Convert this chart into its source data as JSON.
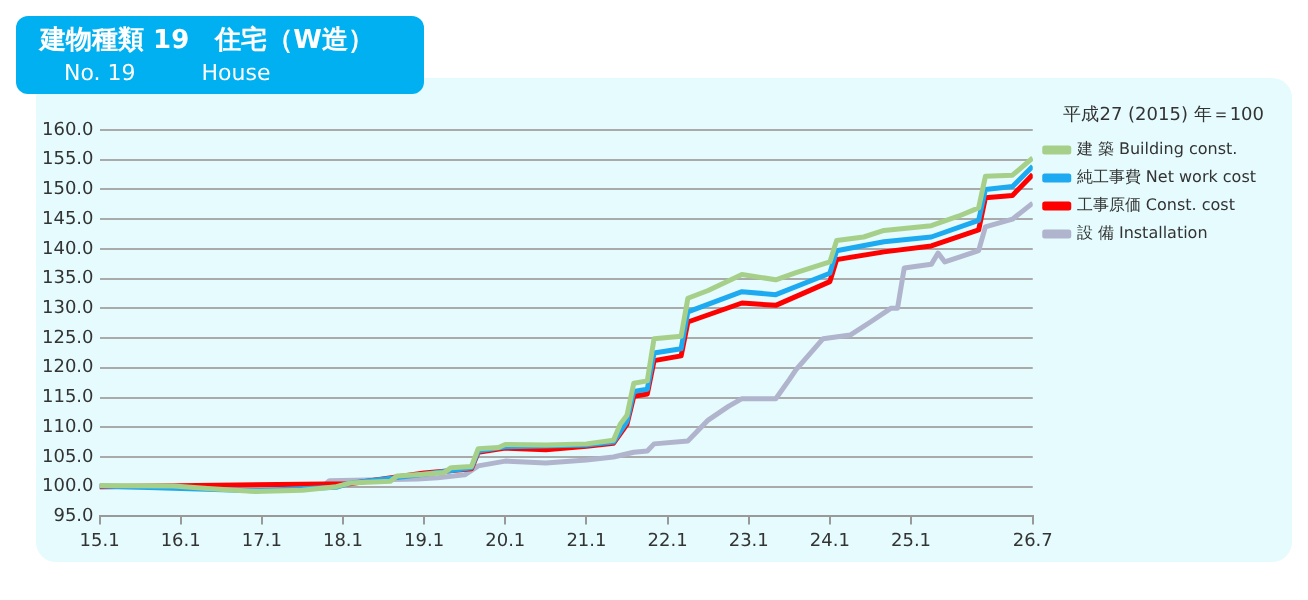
{
  "chart_data": {
    "type": "line",
    "title": "建物種類 19　住宅（W造）",
    "subtitle": "No. 19　　　House",
    "annotations": [
      "平成27 (2015) 年＝100"
    ],
    "xlim": [
      "2015-01",
      "2026-07"
    ],
    "xticks": [
      {
        "value": "2015-01",
        "label": "15.1"
      },
      {
        "value": "2016-01",
        "label": "16.1"
      },
      {
        "value": "2017-01",
        "label": "17.1"
      },
      {
        "value": "2018-01",
        "label": "18.1"
      },
      {
        "value": "2019-01",
        "label": "19.1"
      },
      {
        "value": "2020-01",
        "label": "20.1"
      },
      {
        "value": "2021-01",
        "label": "21.1"
      },
      {
        "value": "2022-01",
        "label": "22.1"
      },
      {
        "value": "2023-01",
        "label": "23.1"
      },
      {
        "value": "2024-01",
        "label": "24.1"
      },
      {
        "value": "2025-01",
        "label": "25.1"
      },
      {
        "value": "2026-07",
        "label": "26.7"
      }
    ],
    "ylim": [
      95,
      160
    ],
    "yticks": [
      {
        "value": 95,
        "label": "95.0"
      },
      {
        "value": 100,
        "label": "100.0"
      },
      {
        "value": 105,
        "label": "105.0"
      },
      {
        "value": 110,
        "label": "110.0"
      },
      {
        "value": 115,
        "label": "115.0"
      },
      {
        "value": 120,
        "label": "120.0"
      },
      {
        "value": 125,
        "label": "125.0"
      },
      {
        "value": 130,
        "label": "130.0"
      },
      {
        "value": 135,
        "label": "135.0"
      },
      {
        "value": 140,
        "label": "140.0"
      },
      {
        "value": 145,
        "label": "145.0"
      },
      {
        "value": 150,
        "label": "150.0"
      },
      {
        "value": 155,
        "label": "155.0"
      },
      {
        "value": 160,
        "label": "160.0"
      }
    ],
    "grid": "y",
    "legend": "right",
    "marker": "none",
    "line_style": "solid",
    "series": [
      {
        "name": "建 築 Building const.",
        "color": "#a6d08a",
        "x": [
          "2015-01",
          "2015-12",
          "2016-05",
          "2016-12",
          "2017-07",
          "2017-12",
          "2018-02",
          "2018-08",
          "2018-09",
          "2019-01",
          "2019-04",
          "2019-05",
          "2019-08",
          "2019-09",
          "2019-12",
          "2020-01",
          "2020-07",
          "2021-01",
          "2021-05",
          "2021-06",
          "2021-07",
          "2021-08",
          "2021-10",
          "2021-11",
          "2022-03",
          "2022-04",
          "2022-07",
          "2022-12",
          "2023-05",
          "2023-08",
          "2024-01",
          "2024-02",
          "2024-06",
          "2024-09",
          "2025-04",
          "2025-08",
          "2025-11",
          "2025-12",
          "2026-04",
          "2026-07"
        ],
        "values": [
          100.2,
          100.1,
          99.7,
          99.2,
          99.4,
          100.0,
          100.6,
          100.9,
          101.8,
          102.1,
          102.4,
          103.2,
          103.4,
          106.4,
          106.6,
          107.1,
          107.0,
          107.2,
          107.8,
          110.5,
          112.0,
          117.4,
          117.8,
          124.9,
          125.3,
          131.7,
          133.0,
          135.7,
          134.8,
          136.0,
          137.8,
          141.4,
          142.0,
          143.1,
          143.9,
          145.5,
          146.9,
          152.2,
          152.4,
          155.3
        ]
      },
      {
        "name": "純工事費 Net work cost",
        "color": "#1eaaf0",
        "x": [
          "2015-01",
          "2016-12",
          "2017-12",
          "2018-02",
          "2019-01",
          "2019-08",
          "2019-09",
          "2020-01",
          "2021-01",
          "2021-05",
          "2021-07",
          "2021-08",
          "2021-10",
          "2021-11",
          "2022-03",
          "2022-04",
          "2022-12",
          "2023-05",
          "2024-01",
          "2024-02",
          "2024-09",
          "2025-04",
          "2025-11",
          "2025-12",
          "2026-04",
          "2026-07"
        ],
        "values": [
          100.1,
          99.3,
          99.9,
          100.6,
          102.1,
          103.2,
          106.0,
          106.7,
          107.0,
          107.5,
          111.0,
          116.0,
          116.4,
          122.5,
          123.2,
          129.4,
          132.8,
          132.3,
          135.9,
          139.7,
          141.2,
          142.0,
          144.8,
          150.0,
          150.5,
          153.9
        ]
      },
      {
        "name": "工事原価 Const. cost",
        "color": "#ff0000",
        "x": [
          "2015-01",
          "2016-12",
          "2017-12",
          "2018-02",
          "2019-01",
          "2019-04",
          "2019-08",
          "2019-09",
          "2020-01",
          "2020-07",
          "2021-01",
          "2021-05",
          "2021-07",
          "2021-08",
          "2021-10",
          "2021-11",
          "2022-03",
          "2022-04",
          "2022-12",
          "2023-05",
          "2024-01",
          "2024-02",
          "2024-09",
          "2025-04",
          "2025-11",
          "2025-12",
          "2026-04",
          "2026-07"
        ],
        "values": [
          100.0,
          null,
          null,
          100.5,
          102.3,
          102.6,
          103.0,
          105.8,
          106.5,
          106.2,
          106.8,
          107.3,
          110.5,
          115.2,
          115.6,
          121.2,
          122.0,
          127.7,
          130.9,
          130.5,
          134.5,
          138.2,
          139.5,
          140.5,
          143.2,
          148.6,
          149.0,
          152.5
        ]
      },
      {
        "name": "設 備 Installation",
        "color": "#b0b4cc",
        "x": [
          "2015-01",
          "2016-01",
          "2016-12",
          "2017-10",
          "2017-11",
          "2018-12",
          "2019-03",
          "2019-07",
          "2019-09",
          "2020-01",
          "2020-07",
          "2021-01",
          "2021-05",
          "2021-08",
          "2021-10",
          "2021-11",
          "2022-04",
          "2022-07",
          "2022-10",
          "2022-12",
          "2023-05",
          "2023-07",
          "2023-08",
          "2023-12",
          "2024-04",
          "2024-07",
          "2024-10",
          "2024-11",
          "2024-12",
          "2025-04",
          "2025-05",
          "2025-06",
          "2025-11",
          "2025-12",
          "2026-04",
          "2026-07"
        ],
        "values": [
          100.0,
          99.9,
          99.5,
          100.0,
          101.0,
          101.3,
          101.5,
          102.0,
          103.5,
          104.3,
          104.0,
          104.5,
          105.0,
          105.8,
          106.0,
          107.2,
          107.7,
          111.2,
          113.5,
          114.8,
          114.8,
          118.0,
          119.7,
          124.9,
          125.5,
          127.7,
          130.0,
          130.0,
          136.8,
          137.4,
          139.3,
          137.8,
          139.7,
          143.7,
          145.0,
          147.7
        ]
      }
    ]
  }
}
